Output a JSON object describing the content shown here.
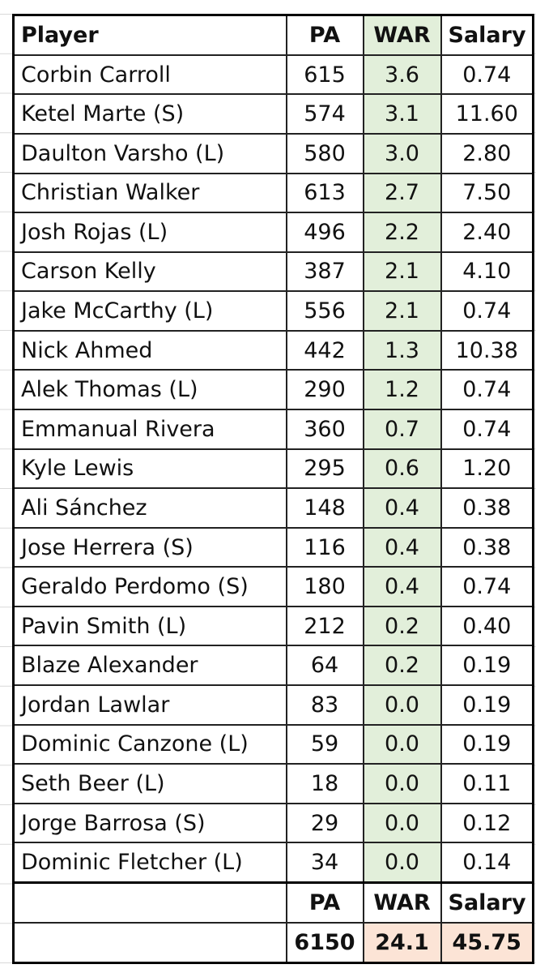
{
  "table": {
    "header": [
      "Player",
      "PA",
      "WAR",
      "Salary"
    ],
    "rows": [
      [
        "Corbin Carroll",
        "615",
        "3.6",
        "0.74"
      ],
      [
        "Ketel Marte (S)",
        "574",
        "3.1",
        "11.60"
      ],
      [
        "Daulton Varsho (L)",
        "580",
        "3.0",
        "2.80"
      ],
      [
        "Christian Walker",
        "613",
        "2.7",
        "7.50"
      ],
      [
        "Josh Rojas (L)",
        "496",
        "2.2",
        "2.40"
      ],
      [
        "Carson Kelly",
        "387",
        "2.1",
        "4.10"
      ],
      [
        "Jake McCarthy (L)",
        "556",
        "2.1",
        "0.74"
      ],
      [
        "Nick Ahmed",
        "442",
        "1.3",
        "10.38"
      ],
      [
        "Alek Thomas (L)",
        "290",
        "1.2",
        "0.74"
      ],
      [
        "Emmanual Rivera",
        "360",
        "0.7",
        "0.74"
      ],
      [
        "Kyle Lewis",
        "295",
        "0.6",
        "1.20"
      ],
      [
        "Ali Sánchez",
        "148",
        "0.4",
        "0.38"
      ],
      [
        "Jose Herrera (S)",
        "116",
        "0.4",
        "0.38"
      ],
      [
        "Geraldo Perdomo (S)",
        "180",
        "0.4",
        "0.74"
      ],
      [
        "Pavin Smith (L)",
        "212",
        "0.2",
        "0.40"
      ],
      [
        "Blaze Alexander",
        "64",
        "0.2",
        "0.19"
      ],
      [
        "Jordan Lawlar",
        "83",
        "0.0",
        "0.19"
      ],
      [
        "Dominic Canzone (L)",
        "59",
        "0.0",
        "0.19"
      ],
      [
        "Seth Beer (L)",
        "18",
        "0.0",
        "0.11"
      ],
      [
        "Jorge Barrosa (S)",
        "29",
        "0.0",
        "0.12"
      ],
      [
        "Dominic Fletcher (L)",
        "34",
        "0.0",
        "0.14"
      ]
    ],
    "totals_header": [
      "PA",
      "WAR",
      "Salary"
    ],
    "totals": [
      "6150",
      "24.1",
      "45.75"
    ]
  }
}
